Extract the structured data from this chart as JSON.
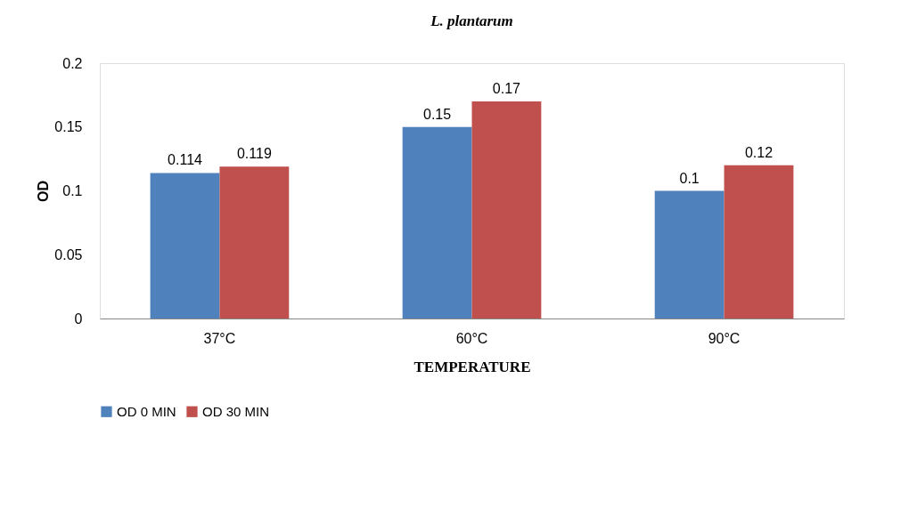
{
  "chart_data": {
    "type": "bar",
    "title": "L. plantarum",
    "xlabel": "TEMPERATURE",
    "ylabel": "OD",
    "categories": [
      "37°C",
      "60°C",
      "90°C"
    ],
    "series": [
      {
        "name": "OD 0 MIN",
        "color": "#4f81bd",
        "values": [
          0.114,
          0.15,
          0.1
        ]
      },
      {
        "name": "OD 30 MIN",
        "color": "#c0504d",
        "values": [
          0.119,
          0.17,
          0.12
        ]
      }
    ],
    "ylim": [
      0,
      0.2
    ],
    "yticks": [
      0,
      0.05,
      0.1,
      0.15,
      0.2
    ],
    "grid": false,
    "legend": "bottom",
    "data_labels": true
  }
}
